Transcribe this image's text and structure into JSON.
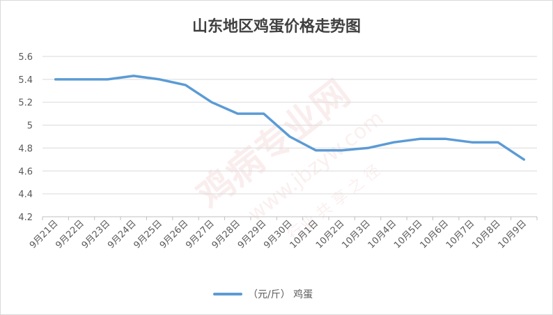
{
  "chart_data": {
    "type": "line",
    "title": "山东地区鸡蛋价格走势图",
    "categories": [
      "9月21日",
      "9月22日",
      "9月23日",
      "9月24日",
      "9月25日",
      "9月26日",
      "9月27日",
      "9月28日",
      "9月29日",
      "9月30日",
      "10月1日",
      "10月2日",
      "10月3日",
      "10月4日",
      "10月5日",
      "10月6日",
      "10月7日",
      "10月8日",
      "10月9日"
    ],
    "series": [
      {
        "name": "（元/斤） 鸡蛋",
        "color": "#5b9bd5",
        "values": [
          5.4,
          5.4,
          5.4,
          5.43,
          5.4,
          5.35,
          5.2,
          5.1,
          5.1,
          4.9,
          4.78,
          4.78,
          4.8,
          4.85,
          4.88,
          4.88,
          4.85,
          4.85,
          4.7
        ]
      }
    ],
    "ylim": [
      4.2,
      5.6
    ],
    "yticks": [
      "4.2",
      "4.4",
      "4.6",
      "4.8",
      "5",
      "5.2",
      "5.4",
      "5.6"
    ],
    "grid": true,
    "legend": "bottom"
  },
  "watermark": {
    "text": "鸡病专业网",
    "url": "www.jbzyw.com",
    "slogan": "行业 共 享 之 径"
  }
}
